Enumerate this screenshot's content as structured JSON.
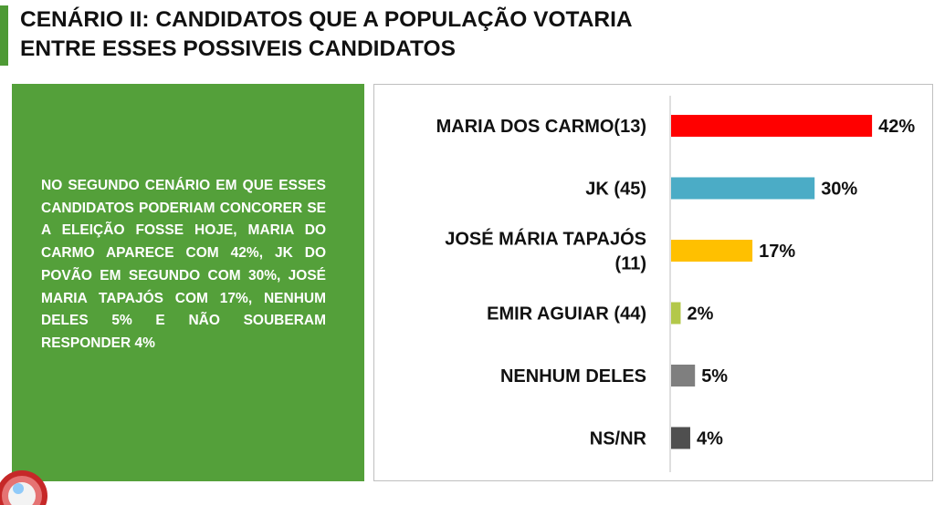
{
  "title_lines": [
    "CENÁRIO II: CANDIDATOS QUE A POPULAÇÃO VOTARIA",
    "ENTRE ESSES POSSIVEIS CANDIDATOS"
  ],
  "summary_text": "NO SEGUNDO CENÁRIO EM QUE ESSES CANDIDATOS PODERIAM CONCORER SE A ELEIÇÃO FOSSE HOJE, MARIA DO CARMO APARECE COM 42%, JK DO POVÃO EM SEGUNDO COM 30%, JOSÉ MARIA TAPAJÓS COM 17%, NENHUM DELES 5% E NÃO SOUBERAM RESPONDER 4%",
  "colors": {
    "accent": "#4e9a35",
    "panel": "#54a03a",
    "axis": "#bfbfbf"
  },
  "logo_icon": "logo-badge-icon",
  "chart_data": {
    "type": "bar",
    "orientation": "horizontal",
    "categories": [
      [
        "MARIA DOS CARMO(13)"
      ],
      [
        "JK (45)"
      ],
      [
        "JOSÉ MÁRIA TAPAJÓS",
        "(11)"
      ],
      [
        "EMIR AGUIAR  (44)"
      ],
      [
        "NENHUM DELES"
      ],
      [
        "NS/NR"
      ]
    ],
    "values": [
      42,
      30,
      17,
      2,
      5,
      4
    ],
    "data_labels": [
      "42%",
      "30%",
      "17%",
      "2%",
      "5%",
      "4%"
    ],
    "bar_colors": [
      "#ff0000",
      "#4bacc6",
      "#ffc000",
      "#b3c84a",
      "#7f7f7f",
      "#4f4f4f"
    ],
    "xlim": [
      0,
      50
    ],
    "grid": false,
    "legend": "none"
  }
}
